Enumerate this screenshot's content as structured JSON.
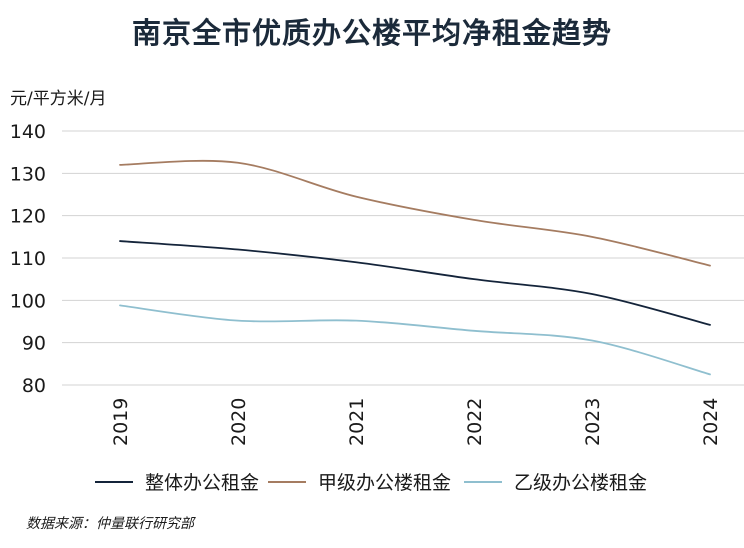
{
  "chart_data": {
    "type": "line",
    "title": "南京全市优质办公楼平均净租金趋势",
    "ylabel": "元/平方米/月",
    "xlabel": "",
    "x": [
      "2019",
      "2020",
      "2021",
      "2022",
      "2023",
      "2024"
    ],
    "ylim": [
      80,
      140
    ],
    "yticks": [
      140,
      130,
      120,
      110,
      100,
      90,
      80
    ],
    "grid": true,
    "legend_position": "bottom",
    "series": [
      {
        "name": "整体办公租金",
        "color": "#14243a",
        "values": [
          114,
          112,
          109,
          105,
          101.5,
          94.2
        ]
      },
      {
        "name": "甲级办公楼租金",
        "color": "#a57c61",
        "values": [
          132,
          132.5,
          124.5,
          119,
          115,
          108.2
        ]
      },
      {
        "name": "乙级办公楼租金",
        "color": "#8fbfcf",
        "values": [
          98.8,
          95.2,
          95.2,
          92.8,
          90.5,
          82.5
        ]
      }
    ],
    "source": "数据来源：仲量联行研究部"
  }
}
